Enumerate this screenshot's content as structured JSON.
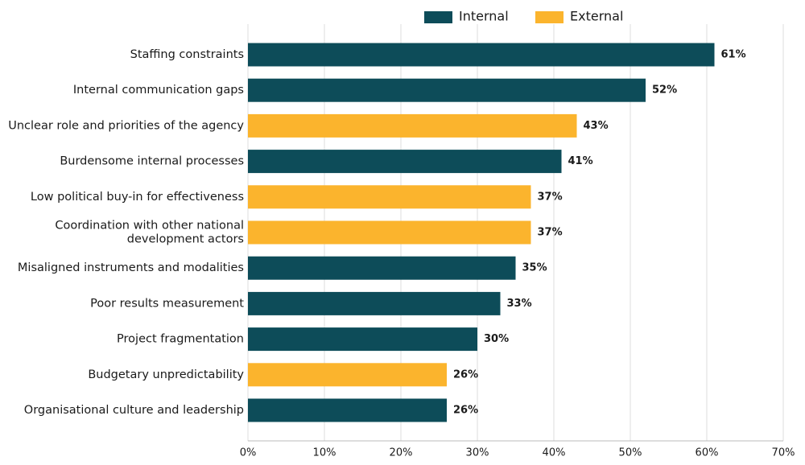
{
  "chart_data": {
    "type": "bar",
    "orientation": "horizontal",
    "categories": [
      "Staffing constraints",
      "Internal communication gaps",
      "Unclear role and priorities of the agency",
      "Burdensome internal processes",
      "Low political buy-in for effectiveness",
      "Coordination with other national\ndevelopment actors",
      "Misaligned instruments and modalities",
      "Poor results measurement",
      "Project fragmentation",
      "Budgetary unpredictability",
      "Organisational culture and leadership"
    ],
    "series": [
      {
        "name": "Internal",
        "color": "#0d4c59",
        "values": [
          61,
          52,
          null,
          41,
          null,
          null,
          35,
          33,
          30,
          null,
          26
        ],
        "value_labels": [
          "61%",
          "52%",
          null,
          "41%",
          null,
          null,
          "35%",
          "33%",
          "30%",
          null,
          "26%"
        ]
      },
      {
        "name": "External",
        "color": "#fbb42d",
        "values": [
          null,
          null,
          43,
          null,
          37,
          37,
          null,
          null,
          null,
          26,
          null
        ],
        "value_labels": [
          null,
          null,
          "43%",
          null,
          "37%",
          "37%",
          null,
          null,
          null,
          "26%",
          null
        ]
      }
    ],
    "xlim": [
      0,
      70
    ],
    "xticks": [
      {
        "value": 0,
        "label": "0%"
      },
      {
        "value": 10,
        "label": "10%"
      },
      {
        "value": 20,
        "label": "20%"
      },
      {
        "value": 30,
        "label": "30%"
      },
      {
        "value": 40,
        "label": "40%"
      },
      {
        "value": 50,
        "label": "50%"
      },
      {
        "value": 60,
        "label": "60%"
      },
      {
        "value": 70,
        "label": "70%"
      }
    ],
    "grid": true,
    "legend": "top"
  }
}
